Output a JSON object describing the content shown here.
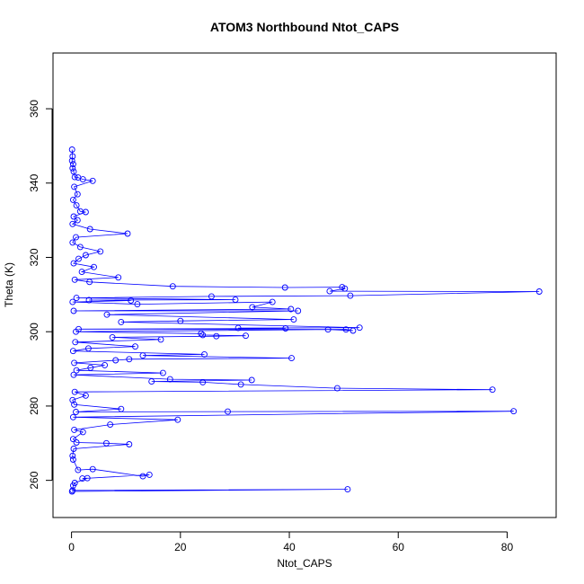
{
  "chart_data": {
    "type": "scatter",
    "title": "ATOM3 Northbound Ntot_CAPS",
    "xlabel": "Ntot_CAPS",
    "ylabel": "Theta (K)",
    "xlim": [
      -3.4,
      89.0
    ],
    "ylim": [
      250.0,
      375.0
    ],
    "xticks": [
      0,
      20,
      40,
      60,
      80
    ],
    "yticks": [
      260,
      280,
      300,
      320,
      340,
      360
    ],
    "grid": false,
    "legend": "none",
    "point_style": "open-circle",
    "connected": true,
    "color": "#0000ff",
    "series": [
      {
        "points": [
          [
            0.1,
            349.0
          ],
          [
            0.2,
            347.2
          ],
          [
            0.1,
            346.0
          ],
          [
            0.3,
            345.1
          ],
          [
            0.2,
            344.0
          ],
          [
            0.4,
            343.1
          ],
          [
            0.6,
            341.6
          ],
          [
            1.2,
            341.5
          ],
          [
            2.1,
            341.0
          ],
          [
            3.9,
            340.6
          ],
          [
            0.5,
            339.0
          ],
          [
            1.1,
            337.0
          ],
          [
            0.3,
            335.5
          ],
          [
            0.9,
            334.0
          ],
          [
            1.6,
            332.4
          ],
          [
            2.6,
            332.2
          ],
          [
            0.4,
            331.0
          ],
          [
            1.1,
            330.0
          ],
          [
            0.2,
            329.0
          ],
          [
            3.4,
            327.6
          ],
          [
            10.3,
            326.4
          ],
          [
            0.8,
            325.4
          ],
          [
            0.2,
            324.0
          ],
          [
            1.6,
            322.8
          ],
          [
            5.3,
            321.6
          ],
          [
            2.6,
            320.6
          ],
          [
            1.3,
            319.6
          ],
          [
            0.4,
            318.4
          ],
          [
            4.1,
            317.4
          ],
          [
            1.9,
            316.1
          ],
          [
            8.6,
            314.6
          ],
          [
            0.6,
            314.0
          ],
          [
            3.3,
            313.4
          ],
          [
            18.6,
            312.2
          ],
          [
            39.2,
            311.9
          ],
          [
            49.7,
            312.0
          ],
          [
            50.2,
            311.6
          ],
          [
            47.4,
            310.9
          ],
          [
            85.9,
            310.8
          ],
          [
            51.2,
            309.7
          ],
          [
            25.7,
            309.5
          ],
          [
            0.9,
            309.1
          ],
          [
            30.1,
            308.6
          ],
          [
            3.2,
            308.5
          ],
          [
            10.9,
            308.4
          ],
          [
            0.2,
            308.0
          ],
          [
            12.1,
            307.4
          ],
          [
            36.9,
            308.0
          ],
          [
            33.2,
            306.6
          ],
          [
            40.3,
            306.1
          ],
          [
            0.4,
            305.6
          ],
          [
            41.6,
            305.6
          ],
          [
            6.5,
            304.6
          ],
          [
            40.8,
            303.3
          ],
          [
            20.0,
            302.9
          ],
          [
            9.1,
            302.6
          ],
          [
            52.9,
            301.1
          ],
          [
            30.6,
            301.0
          ],
          [
            39.3,
            300.9
          ],
          [
            1.3,
            300.7
          ],
          [
            50.4,
            300.6
          ],
          [
            51.7,
            300.3
          ],
          [
            47.1,
            300.6
          ],
          [
            0.8,
            300.0
          ],
          [
            23.8,
            299.5
          ],
          [
            24.1,
            299.1
          ],
          [
            32.0,
            298.9
          ],
          [
            26.6,
            298.8
          ],
          [
            7.5,
            298.5
          ],
          [
            16.4,
            297.9
          ],
          [
            0.7,
            297.2
          ],
          [
            11.7,
            296.0
          ],
          [
            3.1,
            295.5
          ],
          [
            0.3,
            294.8
          ],
          [
            24.4,
            293.9
          ],
          [
            13.1,
            293.6
          ],
          [
            40.4,
            292.9
          ],
          [
            10.6,
            292.6
          ],
          [
            8.1,
            292.3
          ],
          [
            0.5,
            291.6
          ],
          [
            6.1,
            291.0
          ],
          [
            3.5,
            290.3
          ],
          [
            0.9,
            289.6
          ],
          [
            16.8,
            288.9
          ],
          [
            0.4,
            288.4
          ],
          [
            18.1,
            287.2
          ],
          [
            33.1,
            287.0
          ],
          [
            14.7,
            286.6
          ],
          [
            24.1,
            286.4
          ],
          [
            31.1,
            285.8
          ],
          [
            48.8,
            284.8
          ],
          [
            77.3,
            284.4
          ],
          [
            0.6,
            283.8
          ],
          [
            2.6,
            282.8
          ],
          [
            0.2,
            281.6
          ],
          [
            0.5,
            280.4
          ],
          [
            9.1,
            279.2
          ],
          [
            0.8,
            278.4
          ],
          [
            28.7,
            278.5
          ],
          [
            81.2,
            278.6
          ],
          [
            0.3,
            277.0
          ],
          [
            19.5,
            276.3
          ],
          [
            7.1,
            275.0
          ],
          [
            0.5,
            273.6
          ],
          [
            2.1,
            273.0
          ],
          [
            0.3,
            271.1
          ],
          [
            0.9,
            270.2
          ],
          [
            6.4,
            270.0
          ],
          [
            10.6,
            269.7
          ],
          [
            0.4,
            268.5
          ],
          [
            0.2,
            266.6
          ],
          [
            0.3,
            265.6
          ],
          [
            1.2,
            262.8
          ],
          [
            3.9,
            263.0
          ],
          [
            13.1,
            261.1
          ],
          [
            14.3,
            261.5
          ],
          [
            2.0,
            260.5
          ],
          [
            2.9,
            260.6
          ],
          [
            0.6,
            259.3
          ],
          [
            0.3,
            258.6
          ],
          [
            0.2,
            257.3
          ],
          [
            50.7,
            257.6
          ],
          [
            0.1,
            257.0
          ]
        ]
      }
    ]
  }
}
